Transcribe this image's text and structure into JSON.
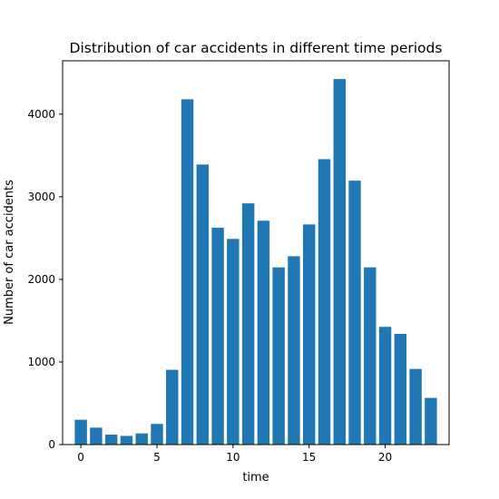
{
  "chart_data": {
    "type": "bar",
    "title": "Distribution of car accidents in different time periods",
    "xlabel": "time",
    "ylabel": "Number of car accidents",
    "bar_color": "#1f77b4",
    "x": [
      0,
      1,
      2,
      3,
      4,
      5,
      6,
      7,
      8,
      9,
      10,
      11,
      12,
      13,
      14,
      15,
      16,
      17,
      18,
      19,
      20,
      21,
      22,
      23
    ],
    "values": [
      300,
      205,
      120,
      105,
      135,
      250,
      905,
      4180,
      3390,
      2625,
      2490,
      2920,
      2710,
      2145,
      2280,
      2665,
      3455,
      4425,
      3195,
      2145,
      1425,
      1340,
      915,
      565
    ],
    "xlim": [
      -1.2,
      24.2
    ],
    "ylim": [
      0,
      4646
    ],
    "xticks": [
      0,
      5,
      10,
      15,
      20
    ],
    "yticks": [
      0,
      1000,
      2000,
      3000,
      4000
    ],
    "grid": false,
    "legend": false
  }
}
